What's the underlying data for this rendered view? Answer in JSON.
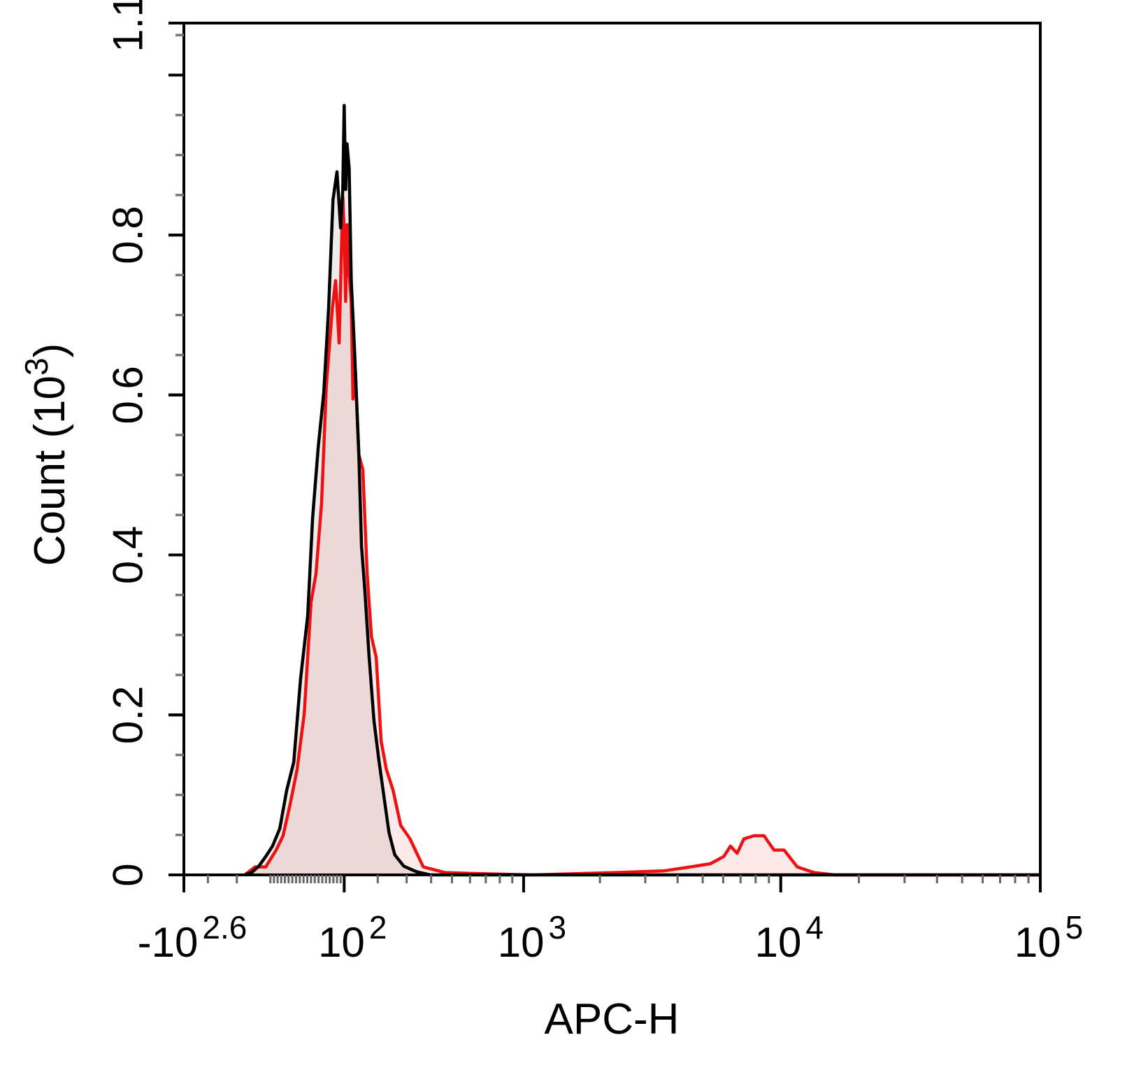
{
  "chart_data": {
    "type": "line",
    "xlabel": "APC-H",
    "ylabel": {
      "text": "Count  (10",
      "exponent": "3",
      "suffix": ")"
    },
    "xscale": "biexponential",
    "xlim": [
      -398.1,
      100000
    ],
    "xticks": [
      {
        "value": -398.1,
        "label": "-10",
        "exponent": "2.6"
      },
      {
        "value": 100,
        "label": "10",
        "exponent": "2"
      },
      {
        "value": 1000,
        "label": "10",
        "exponent": "3"
      },
      {
        "value": 10000,
        "label": "10",
        "exponent": "4"
      },
      {
        "value": 100000,
        "label": "10",
        "exponent": "5"
      }
    ],
    "ylim": [
      0,
      1.065
    ],
    "yticks": [
      0,
      0.2,
      0.4,
      0.6,
      0.8,
      {
        "value": 1.065,
        "label": "1.1"
      }
    ],
    "series": [
      {
        "color": "#ee1111",
        "fill": "rgba(235,120,120,0.16)",
        "x": [
          -175,
          -144,
          -113,
          -84,
          -65,
          -46,
          -27,
          -8,
          10,
          23,
          38,
          51,
          67,
          76,
          86,
          96,
          100,
          104,
          108,
          114,
          120,
          125,
          132,
          142,
          154,
          167,
          180,
          195,
          211,
          228,
          251,
          278,
          313,
          366,
          463,
          586,
          1074,
          2327,
          3530,
          4480,
          5355,
          6030,
          6400,
          6790,
          7210,
          7880,
          8620,
          9420,
          10300,
          11580,
          13420,
          16130,
          100000
        ],
        "values": [
          0,
          0.01,
          0.01,
          0.031,
          0.049,
          0.088,
          0.132,
          0.202,
          0.341,
          0.376,
          0.464,
          0.612,
          0.708,
          0.743,
          0.665,
          0.848,
          0.804,
          0.717,
          0.813,
          0.752,
          0.717,
          0.595,
          0.63,
          0.525,
          0.507,
          0.376,
          0.298,
          0.272,
          0.167,
          0.132,
          0.106,
          0.062,
          0.045,
          0.01,
          0.003,
          0.002,
          0,
          0.003,
          0.005,
          0.01,
          0.014,
          0.023,
          0.036,
          0.027,
          0.045,
          0.049,
          0.049,
          0.031,
          0.031,
          0.01,
          0.003,
          0,
          0
        ]
      },
      {
        "color": "#000000",
        "fill": "rgba(150,110,110,0.14)",
        "x": [
          -175,
          -154,
          -133,
          -113,
          -94,
          -74,
          -55,
          -36,
          -18,
          1,
          14,
          29,
          44,
          57,
          69,
          80,
          90,
          96,
          100,
          104,
          108,
          114,
          120,
          129,
          137,
          142,
          150,
          160,
          173,
          188,
          203,
          219,
          237,
          257,
          289,
          338,
          395,
          1000,
          10000,
          100000
        ],
        "values": [
          0,
          0.003,
          0.011,
          0.023,
          0.036,
          0.058,
          0.106,
          0.141,
          0.245,
          0.324,
          0.446,
          0.534,
          0.603,
          0.708,
          0.844,
          0.879,
          0.809,
          0.857,
          0.962,
          0.857,
          0.914,
          0.883,
          0.743,
          0.66,
          0.577,
          0.525,
          0.411,
          0.355,
          0.272,
          0.193,
          0.145,
          0.101,
          0.053,
          0.025,
          0.011,
          0.004,
          0,
          0,
          0,
          0
        ]
      }
    ]
  }
}
